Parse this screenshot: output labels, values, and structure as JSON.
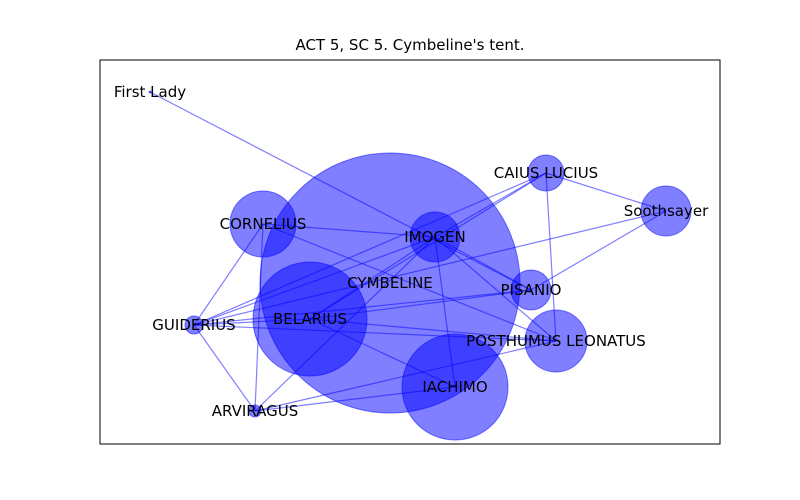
{
  "title": "ACT 5, SC 5. Cymbeline's tent.",
  "colors": {
    "node": "#0000ff",
    "edge": "#0000ff",
    "frame": "#000000"
  },
  "chart_data": {
    "type": "network",
    "nodes": [
      {
        "id": "cymbeline",
        "label": "CYMBELINE"
      },
      {
        "id": "belarius",
        "label": "BELARIUS"
      },
      {
        "id": "iachimo",
        "label": "IACHIMO"
      },
      {
        "id": "imogen",
        "label": "IMOGEN"
      },
      {
        "id": "cornelius",
        "label": "CORNELIUS"
      },
      {
        "id": "posthumus",
        "label": "POSTHUMUS LEONATUS"
      },
      {
        "id": "pisanio",
        "label": "PISANIO"
      },
      {
        "id": "caius",
        "label": "CAIUS LUCIUS"
      },
      {
        "id": "soothsayer",
        "label": "Soothsayer"
      },
      {
        "id": "guiderius",
        "label": "GUIDERIUS"
      },
      {
        "id": "arviragus",
        "label": "ARVIRAGUS"
      },
      {
        "id": "firstlady",
        "label": "First Lady"
      }
    ],
    "edges": [
      [
        "firstlady",
        "pisanio"
      ],
      [
        "cornelius",
        "imogen"
      ],
      [
        "cornelius",
        "guiderius"
      ],
      [
        "cornelius",
        "arviragus"
      ],
      [
        "cornelius",
        "posthumus"
      ],
      [
        "imogen",
        "caius"
      ],
      [
        "imogen",
        "guiderius"
      ],
      [
        "imogen",
        "arviragus"
      ],
      [
        "imogen",
        "iachimo"
      ],
      [
        "imogen",
        "pisanio"
      ],
      [
        "imogen",
        "posthumus"
      ],
      [
        "imogen",
        "belarius"
      ],
      [
        "caius",
        "soothsayer"
      ],
      [
        "caius",
        "posthumus"
      ],
      [
        "caius",
        "guiderius"
      ],
      [
        "caius",
        "belarius"
      ],
      [
        "soothsayer",
        "pisanio"
      ],
      [
        "soothsayer",
        "guiderius"
      ],
      [
        "pisanio",
        "guiderius"
      ],
      [
        "pisanio",
        "belarius"
      ],
      [
        "posthumus",
        "guiderius"
      ],
      [
        "posthumus",
        "belarius"
      ],
      [
        "posthumus",
        "arviragus"
      ],
      [
        "guiderius",
        "arviragus"
      ],
      [
        "guiderius",
        "belarius"
      ],
      [
        "iachimo",
        "belarius"
      ],
      [
        "iachimo",
        "arviragus"
      ]
    ]
  }
}
